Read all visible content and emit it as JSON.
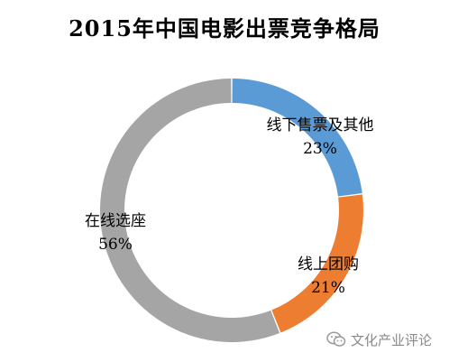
{
  "chart_data": {
    "type": "pie",
    "donut": true,
    "title": "2015年中国电影出票竞争格局",
    "categories": [
      "线下售票及其他",
      "线上团购",
      "在线选座"
    ],
    "values": [
      23,
      21,
      56
    ],
    "value_labels": [
      "23%",
      "21%",
      "56%"
    ],
    "colors": [
      "#5b9bd5",
      "#ed7d31",
      "#a5a5a5"
    ],
    "legend": "none",
    "start": "top",
    "direction": "clockwise"
  },
  "watermark": {
    "icon": "wechat-icon",
    "text": "文化产业评论"
  }
}
